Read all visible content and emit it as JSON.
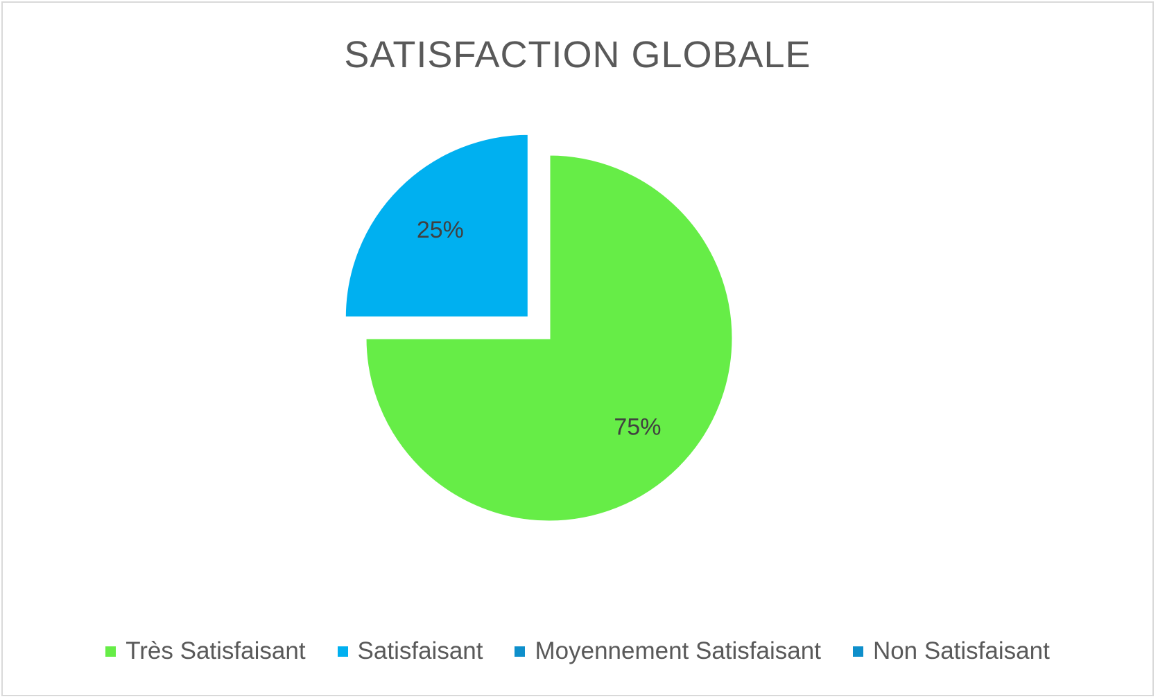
{
  "chart_data": {
    "type": "pie",
    "title": "SATISFACTION GLOBALE",
    "categories": [
      "Très Satisfaisant",
      "Satisfaisant",
      "Moyennement Satisfaisant",
      "Non Satisfaisant"
    ],
    "values": [
      75,
      25,
      0,
      0
    ],
    "data_labels": [
      "75%",
      "25%",
      "",
      ""
    ],
    "colors": [
      "#66ED47",
      "#00B0F0",
      "#0E8FCB",
      "#0E8FCB"
    ],
    "exploded": [
      false,
      true,
      false,
      false
    ],
    "legend_position": "bottom"
  }
}
